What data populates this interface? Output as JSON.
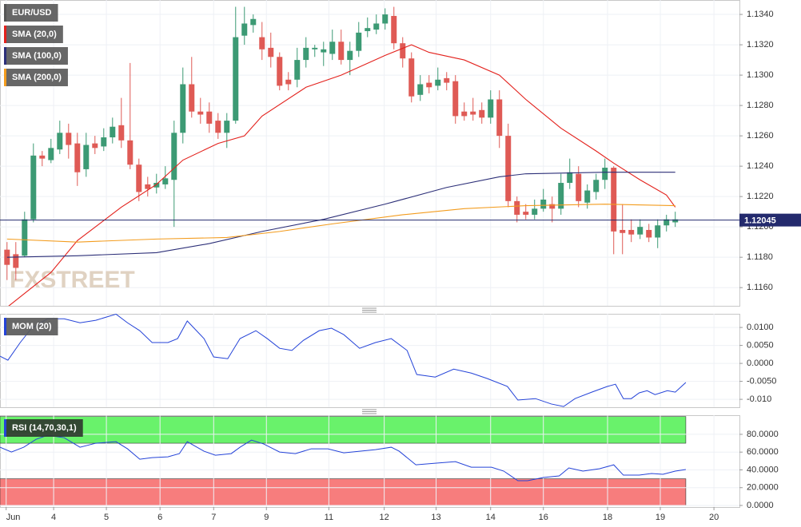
{
  "chart_data": [
    {
      "type": "candlestick",
      "symbol": "EUR/USD",
      "x": [
        0,
        1,
        2,
        3,
        4,
        5,
        6,
        7,
        8,
        9,
        10,
        11,
        12,
        13,
        14,
        15,
        16,
        17,
        18,
        19,
        20,
        21,
        22,
        23,
        24,
        25,
        26,
        27,
        28,
        29,
        30,
        31,
        32,
        33,
        34,
        35,
        36,
        37,
        38,
        39,
        40,
        41,
        42,
        43,
        44,
        45,
        46,
        47,
        48,
        49,
        50,
        51,
        52,
        53,
        54,
        55,
        56,
        57,
        58,
        59,
        60,
        61,
        62,
        63,
        64,
        65,
        66,
        67,
        68,
        69,
        70,
        71,
        72,
        73,
        74,
        75,
        76
      ],
      "open": [
        1.1185,
        1.1182,
        1.1181,
        1.1205,
        1.1247,
        1.1244,
        1.1251,
        1.1262,
        1.1255,
        1.1238,
        1.1255,
        1.1253,
        1.1259,
        1.1267,
        1.1257,
        1.1241,
        1.1228,
        1.1226,
        1.1228,
        1.1231,
        1.1262,
        1.1294,
        1.1276,
        1.1276,
        1.127,
        1.1262,
        1.127,
        1.1326,
        1.1333,
        1.1325,
        1.1318,
        1.1312,
        1.1297,
        1.1297,
        1.131,
        1.1317,
        1.1315,
        1.1314,
        1.1322,
        1.131,
        1.1316,
        1.1329,
        1.133,
        1.1334,
        1.1339,
        1.1321,
        1.1311,
        1.1287,
        1.1295,
        1.1293,
        1.1298,
        1.1296,
        1.1276,
        1.1276,
        1.1277,
        1.1272,
        1.1284,
        1.126,
        1.1217,
        1.121,
        1.1208,
        1.1212,
        1.1215,
        1.1212,
        1.1229,
        1.1235,
        1.1216,
        1.1223,
        1.1231,
        1.1239,
        1.1198,
        1.1198,
        1.1195,
        1.1198,
        1.1193,
        1.1201,
        1.1203
      ],
      "high": [
        1.119,
        1.119,
        1.121,
        1.1255,
        1.125,
        1.1258,
        1.127,
        1.1268,
        1.1262,
        1.1262,
        1.126,
        1.1265,
        1.1272,
        1.1285,
        1.1308,
        1.1245,
        1.1233,
        1.1235,
        1.124,
        1.127,
        1.1305,
        1.1312,
        1.1285,
        1.1282,
        1.1275,
        1.1275,
        1.1345,
        1.1345,
        1.134,
        1.1335,
        1.1328,
        1.1315,
        1.1302,
        1.1318,
        1.1325,
        1.132,
        1.1322,
        1.133,
        1.133,
        1.1322,
        1.1335,
        1.1338,
        1.134,
        1.1344,
        1.1345,
        1.1325,
        1.1315,
        1.13,
        1.13,
        1.1305,
        1.1302,
        1.13,
        1.1282,
        1.1285,
        1.1282,
        1.129,
        1.129,
        1.1268,
        1.122,
        1.1215,
        1.1218,
        1.1225,
        1.122,
        1.1235,
        1.1245,
        1.124,
        1.1228,
        1.1235,
        1.1245,
        1.124,
        1.1215,
        1.1205,
        1.1205,
        1.1202,
        1.1205,
        1.1208,
        1.121
      ],
      "low": [
        1.1165,
        1.1165,
        1.118,
        1.1203,
        1.124,
        1.1242,
        1.1248,
        1.1245,
        1.1227,
        1.1233,
        1.1248,
        1.125,
        1.1255,
        1.1252,
        1.1238,
        1.1217,
        1.122,
        1.1222,
        1.1225,
        1.12,
        1.1255,
        1.1272,
        1.1268,
        1.1262,
        1.1258,
        1.1252,
        1.1268,
        1.132,
        1.1328,
        1.131,
        1.1305,
        1.129,
        1.129,
        1.1292,
        1.1305,
        1.1312,
        1.1306,
        1.131,
        1.1307,
        1.13,
        1.1312,
        1.1325,
        1.1327,
        1.133,
        1.1317,
        1.1305,
        1.1282,
        1.1283,
        1.1288,
        1.129,
        1.129,
        1.1268,
        1.127,
        1.127,
        1.1268,
        1.1268,
        1.1252,
        1.1213,
        1.1203,
        1.1205,
        1.1205,
        1.121,
        1.1203,
        1.1208,
        1.1225,
        1.1213,
        1.1212,
        1.1218,
        1.1225,
        1.1182,
        1.1182,
        1.119,
        1.1192,
        1.119,
        1.1186,
        1.1197,
        1.12
      ],
      "close": [
        1.1175,
        1.1173,
        1.1205,
        1.1247,
        1.1245,
        1.1252,
        1.1262,
        1.1254,
        1.1236,
        1.1254,
        1.1252,
        1.1259,
        1.1266,
        1.1257,
        1.1241,
        1.1223,
        1.1225,
        1.1229,
        1.1232,
        1.1262,
        1.1294,
        1.1276,
        1.1274,
        1.1268,
        1.1262,
        1.127,
        1.1325,
        1.1334,
        1.1337,
        1.1317,
        1.1312,
        1.1293,
        1.1294,
        1.131,
        1.1318,
        1.1318,
        1.1317,
        1.1322,
        1.131,
        1.1316,
        1.1328,
        1.1331,
        1.1334,
        1.134,
        1.1321,
        1.1311,
        1.1286,
        1.1294,
        1.1292,
        1.1297,
        1.1295,
        1.1273,
        1.1273,
        1.1274,
        1.1272,
        1.1284,
        1.126,
        1.1217,
        1.1208,
        1.1208,
        1.1212,
        1.1218,
        1.1212,
        1.1229,
        1.1236,
        1.1217,
        1.1224,
        1.1231,
        1.1239,
        1.1197,
        1.1196,
        1.1195,
        1.12,
        1.1193,
        1.1201,
        1.1205,
        1.1205
      ],
      "up_color": "#3c9a74",
      "down_color": "#df5a55",
      "overlays": [
        {
          "name": "SMA (20,0)",
          "color": "#e3211c",
          "x": [
            0,
            5,
            8,
            13,
            17,
            20,
            24,
            27,
            29,
            34,
            38,
            43,
            46,
            48,
            52,
            56,
            59,
            63,
            67,
            69,
            72,
            75,
            76
          ],
          "values": [
            1.1147,
            1.117,
            1.1191,
            1.1213,
            1.1228,
            1.1244,
            1.1255,
            1.126,
            1.1273,
            1.1292,
            1.13,
            1.1313,
            1.132,
            1.1315,
            1.131,
            1.13,
            1.1284,
            1.1265,
            1.125,
            1.1242,
            1.1231,
            1.1221,
            1.1213
          ]
        },
        {
          "name": "SMA (100,0)",
          "color": "#2c2f78",
          "x": [
            0,
            8,
            17,
            23,
            29,
            36,
            43,
            50,
            56,
            59,
            68,
            76
          ],
          "values": [
            1.118,
            1.1181,
            1.1183,
            1.1189,
            1.1197,
            1.1205,
            1.1215,
            1.1226,
            1.1233,
            1.1235,
            1.1236,
            1.1236
          ]
        },
        {
          "name": "SMA (200,0)",
          "color": "#f39c1e",
          "x": [
            0,
            8,
            17,
            25,
            31,
            37,
            45,
            52,
            59,
            68,
            76
          ],
          "values": [
            1.1192,
            1.119,
            1.1192,
            1.1193,
            1.1197,
            1.1202,
            1.1208,
            1.1212,
            1.1214,
            1.1215,
            1.1214
          ]
        }
      ],
      "last_price": 1.12045,
      "last_price_color": "#232a6d",
      "watermark": "FXSTREET",
      "xlim": [
        -0.8,
        83.3
      ],
      "ylim": [
        1.1148,
        1.13495
      ],
      "yticks": [
        {
          "value": 1.134,
          "label": "1.1340"
        },
        {
          "value": 1.132,
          "label": "1.1320"
        },
        {
          "value": 1.13,
          "label": "1.1300"
        },
        {
          "value": 1.128,
          "label": "1.1280"
        },
        {
          "value": 1.126,
          "label": "1.1260"
        },
        {
          "value": 1.124,
          "label": "1.1240"
        },
        {
          "value": 1.122,
          "label": "1.1220"
        },
        {
          "value": 1.12,
          "label": "1.1200"
        },
        {
          "value": 1.118,
          "label": "1.1180"
        },
        {
          "value": 1.116,
          "label": "1.1160"
        }
      ],
      "grid": true
    },
    {
      "type": "line",
      "series": [
        {
          "name": "MOM (20)",
          "color": "#2443d8",
          "x": [
            -0.8,
            0.1,
            1.5,
            2.8,
            4.6,
            6.5,
            8.3,
            10.1,
            12.4,
            13.7,
            15.1,
            16.5,
            18.3,
            19.4,
            20.5,
            22.4,
            23.5,
            25.1,
            26.5,
            28.3,
            29.6,
            31,
            32.4,
            33.7,
            35.5,
            36.9,
            38.3,
            40.1,
            41.9,
            43.7,
            45.5,
            46.6,
            48.7,
            50.8,
            52.8,
            54.6,
            56.9,
            58.1,
            60.1,
            61.9,
            63.3,
            64.6,
            66.5,
            68.3,
            69.2,
            70.1,
            71,
            71.9,
            72.8,
            73.7,
            75.1,
            76,
            77.2
          ],
          "values": [
            0.002,
            0.0009,
            0.0058,
            0.0098,
            0.0124,
            0.0124,
            0.0113,
            0.012,
            0.0137,
            0.0113,
            0.0091,
            0.0058,
            0.0058,
            0.0069,
            0.0118,
            0.0069,
            0.0018,
            0.0013,
            0.0069,
            0.0091,
            0.0069,
            0.0042,
            0.0036,
            0.0064,
            0.0091,
            0.0098,
            0.008,
            0.0042,
            0.0058,
            0.0069,
            0.0036,
            -0.0031,
            -0.0038,
            -0.0016,
            -0.0027,
            -0.0042,
            -0.0064,
            -0.0102,
            -0.0098,
            -0.0113,
            -0.012,
            -0.0098,
            -0.008,
            -0.0064,
            -0.0058,
            -0.0098,
            -0.0098,
            -0.0082,
            -0.0076,
            -0.0087,
            -0.0076,
            -0.008,
            -0.0053
          ]
        }
      ],
      "xlim": [
        -0.8,
        83.3
      ],
      "ylim": [
        -0.0122,
        0.0138
      ],
      "yticks": [
        {
          "value": 0.01,
          "label": "0.0100"
        },
        {
          "value": 0.005,
          "label": "0.0050"
        },
        {
          "value": 0,
          "label": "0.0000"
        },
        {
          "value": -0.005,
          "label": "-0.0050"
        },
        {
          "value": -0.01,
          "label": "-0.010"
        }
      ],
      "grid": true
    },
    {
      "type": "line",
      "series": [
        {
          "name": "RSI (14,70,30,1)",
          "color": "#2443d8",
          "x": [
            -0.8,
            0.5,
            1.9,
            3.3,
            4.6,
            6.5,
            8.3,
            10.1,
            12.4,
            13.7,
            15.1,
            16.5,
            18.3,
            19.6,
            20.5,
            22.4,
            23.7,
            25.5,
            26.5,
            27.8,
            29.2,
            31,
            32.8,
            34.6,
            36.5,
            38.3,
            40.1,
            41.9,
            43.7,
            44.6,
            46.5,
            48.7,
            51,
            52.8,
            55.1,
            56.5,
            58.1,
            59.2,
            61,
            62.8,
            63.9,
            65.5,
            67.4,
            69,
            70.1,
            71.9,
            73.3,
            74.6,
            76,
            77.2
          ],
          "values": [
            65.5,
            60.1,
            65.5,
            74.4,
            78.9,
            76.2,
            65.5,
            70.0,
            71.7,
            63.7,
            52.0,
            53.8,
            54.7,
            58.3,
            71.7,
            61.0,
            56.5,
            58.3,
            65.5,
            73.5,
            69.1,
            60.1,
            58.3,
            63.7,
            63.7,
            59.2,
            61.0,
            62.8,
            65.5,
            61.0,
            45.7,
            47.5,
            49.3,
            43.0,
            43.0,
            38.6,
            27.8,
            27.8,
            31.4,
            33.2,
            42.2,
            38.6,
            41.3,
            45.7,
            34.1,
            34.1,
            35.9,
            35.0,
            38.6,
            40.4
          ]
        }
      ],
      "bands": [
        {
          "from": 70,
          "to": 100,
          "color": "#69f26b"
        },
        {
          "from": 0,
          "to": 30,
          "color": "#f77d7d"
        }
      ],
      "xlim": [
        -0.8,
        83.3
      ],
      "ylim": [
        -1.8,
        101.5
      ],
      "yticks": [
        {
          "value": 80,
          "label": "80.0000"
        },
        {
          "value": 60,
          "label": "60.0000"
        },
        {
          "value": 40,
          "label": "40.0000"
        },
        {
          "value": 20,
          "label": "20.0000"
        },
        {
          "value": 0,
          "label": "0.0000"
        }
      ],
      "xticks": [
        {
          "value": -0.1,
          "label": "Jun"
        },
        {
          "value": 5.3,
          "label": "4"
        },
        {
          "value": 11.3,
          "label": "5"
        },
        {
          "value": 17.4,
          "label": "6"
        },
        {
          "value": 23.5,
          "label": "7"
        },
        {
          "value": 29.5,
          "label": "9"
        },
        {
          "value": 36.6,
          "label": "11"
        },
        {
          "value": 42.9,
          "label": "12"
        },
        {
          "value": 48.8,
          "label": "13"
        },
        {
          "value": 55,
          "label": "14"
        },
        {
          "value": 61,
          "label": "16"
        },
        {
          "value": 68.3,
          "label": "18"
        },
        {
          "value": 74.3,
          "label": "19"
        },
        {
          "value": 80.4,
          "label": "20"
        }
      ],
      "grid": true
    }
  ]
}
